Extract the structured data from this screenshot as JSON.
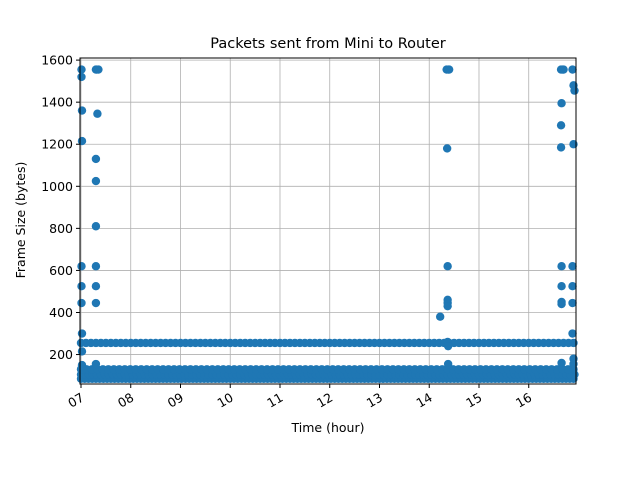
{
  "chart_data": {
    "type": "scatter",
    "title": "Packets sent from Mini to Router",
    "xlabel": "Time (hour)",
    "ylabel": "Frame Size (bytes)",
    "x_unit": "hour of day",
    "xlim": [
      6.98,
      16.95
    ],
    "ylim": [
      60,
      1610
    ],
    "x_ticks": [
      {
        "value": 7,
        "label": "07"
      },
      {
        "value": 8,
        "label": "08"
      },
      {
        "value": 9,
        "label": "09"
      },
      {
        "value": 10,
        "label": "10"
      },
      {
        "value": 11,
        "label": "11"
      },
      {
        "value": 12,
        "label": "12"
      },
      {
        "value": 13,
        "label": "13"
      },
      {
        "value": 14,
        "label": "14"
      },
      {
        "value": 15,
        "label": "15"
      },
      {
        "value": 16,
        "label": "16"
      }
    ],
    "y_ticks": [
      {
        "value": 200,
        "label": "200"
      },
      {
        "value": 400,
        "label": "400"
      },
      {
        "value": 600,
        "label": "600"
      },
      {
        "value": 800,
        "label": "800"
      },
      {
        "value": 1000,
        "label": "1000"
      },
      {
        "value": 1200,
        "label": "1200"
      },
      {
        "value": 1400,
        "label": "1400"
      },
      {
        "value": 1600,
        "label": "1600"
      }
    ],
    "grid": true,
    "marker_color": "#1f77b4",
    "points": [
      [
        7.01,
        1555
      ],
      [
        7.01,
        1520
      ],
      [
        7.02,
        1360
      ],
      [
        7.02,
        1215
      ],
      [
        7.01,
        620
      ],
      [
        7.01,
        525
      ],
      [
        7.01,
        445
      ],
      [
        7.02,
        300
      ],
      [
        7.02,
        215
      ],
      [
        7.02,
        150
      ],
      [
        7.03,
        130
      ],
      [
        7.3,
        1555
      ],
      [
        7.32,
        1555
      ],
      [
        7.35,
        1555
      ],
      [
        7.33,
        1345
      ],
      [
        7.3,
        1130
      ],
      [
        7.3,
        1025
      ],
      [
        7.3,
        810
      ],
      [
        7.3,
        620
      ],
      [
        7.3,
        525
      ],
      [
        7.3,
        445
      ],
      [
        7.3,
        155
      ],
      [
        14.22,
        380
      ],
      [
        14.35,
        1555
      ],
      [
        14.38,
        1555
      ],
      [
        14.4,
        1555
      ],
      [
        14.36,
        1180
      ],
      [
        14.37,
        620
      ],
      [
        14.37,
        460
      ],
      [
        14.37,
        445
      ],
      [
        14.37,
        430
      ],
      [
        14.37,
        260
      ],
      [
        14.38,
        240
      ],
      [
        14.38,
        155
      ],
      [
        16.65,
        1555
      ],
      [
        16.68,
        1555
      ],
      [
        16.7,
        1555
      ],
      [
        16.88,
        1555
      ],
      [
        16.66,
        1395
      ],
      [
        16.65,
        1290
      ],
      [
        16.65,
        1185
      ],
      [
        16.66,
        620
      ],
      [
        16.66,
        525
      ],
      [
        16.66,
        450
      ],
      [
        16.66,
        440
      ],
      [
        16.66,
        160
      ],
      [
        16.9,
        1480
      ],
      [
        16.92,
        1455
      ],
      [
        16.9,
        1200
      ],
      [
        16.88,
        620
      ],
      [
        16.88,
        525
      ],
      [
        16.88,
        445
      ],
      [
        16.88,
        300
      ],
      [
        16.9,
        180
      ],
      [
        16.9,
        155
      ]
    ],
    "band_255": {
      "y": 255,
      "x_start": 7.0,
      "x_end": 16.95,
      "step": 0.1
    },
    "band_130": {
      "y": 130,
      "x_start": 7.0,
      "x_end": 16.95,
      "step": 0.11
    },
    "band_105": {
      "y": 105,
      "x_start": 7.0,
      "x_end": 16.95,
      "step": 0.08
    },
    "band_85": {
      "y": 85,
      "x_start": 7.0,
      "x_end": 16.95,
      "step": 0.075
    }
  }
}
